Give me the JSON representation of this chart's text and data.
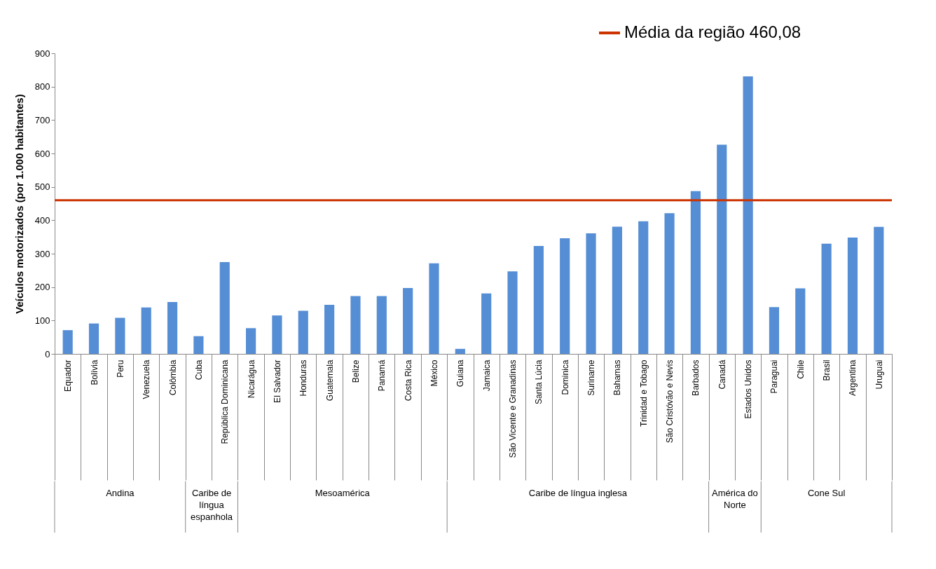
{
  "chart_data": {
    "type": "bar",
    "ylabel": "Veículos motorizados (por 1.000 habitantes)",
    "categories": [
      "Equador",
      "Bolívia",
      "Peru",
      "Venezuela",
      "Colômbia",
      "Cuba",
      "República Dominicana",
      "Nicarágua",
      "El Salvador",
      "Honduras",
      "Guatemala",
      "Belize",
      "Panamá",
      "Costa Rica",
      "México",
      "Guiana",
      "Jamaica",
      "São Vicente e Granadinas",
      "Santa Lúcia",
      "Dominica",
      "Suriname",
      "Bahamas",
      "Trinidad e Tobago",
      "São Cristóvão e Nevis",
      "Barbados",
      "Canadá",
      "Estados Unidos",
      "Paraguai",
      "Chile",
      "Brasil",
      "Argentina",
      "Uruguai"
    ],
    "values": [
      71,
      91,
      108,
      139,
      155,
      53,
      275,
      77,
      115,
      129,
      147,
      173,
      173,
      197,
      271,
      15,
      181,
      247,
      323,
      346,
      361,
      381,
      397,
      421,
      487,
      626,
      831,
      140,
      196,
      330,
      348,
      380
    ],
    "color": "#558ed5",
    "ylim": [
      0,
      900
    ],
    "yticks": [
      0,
      100,
      200,
      300,
      400,
      500,
      600,
      700,
      800,
      900
    ],
    "grid": false,
    "legend": "top right",
    "ref_lines": [
      {
        "axis": "y",
        "value": 460.08,
        "label": "Média da região 460,08",
        "color": "#cc3300"
      }
    ],
    "annotations": [
      "Andina",
      "Caribe de língua espanhola",
      "Mesoamérica",
      "Caribe de língua inglesa",
      "América do Norte",
      "Cone Sul"
    ]
  }
}
